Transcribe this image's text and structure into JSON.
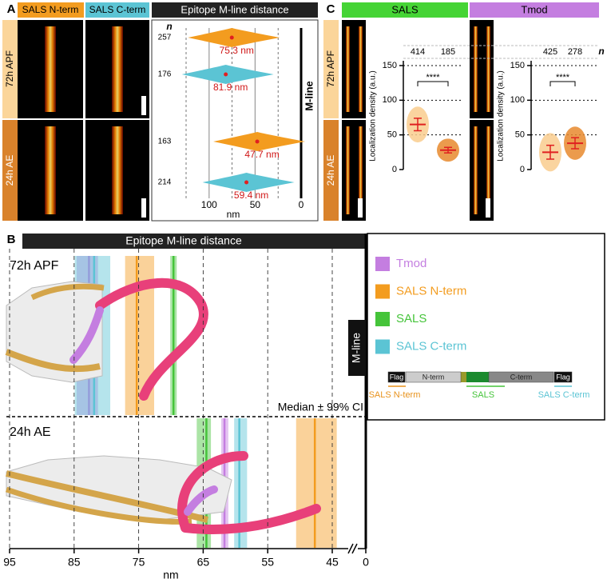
{
  "panel_labels": [
    "A",
    "B",
    "C"
  ],
  "construct": {
    "domains": [
      "Flag",
      "N-term",
      "C-term",
      "Flag"
    ],
    "tags": [
      "SALS N-term",
      "SALS",
      "SALS C-term"
    ]
  },
  "chart_data": [
    {
      "type": "violin",
      "title": "Epitope M-line distance",
      "image_labels": [
        "SALS N-term",
        "SALS C-term"
      ],
      "categories": [
        "72h APF",
        "24h AE"
      ],
      "n_label": "n",
      "x_label": "nm",
      "reference_label": "M-line",
      "xlim": [
        125,
        0
      ],
      "xticks": [
        100,
        50,
        0
      ],
      "grid": true,
      "minor_grid": [
        125,
        75,
        25
      ],
      "series": [
        {
          "name": "SALS N-term",
          "color": "#f39c1f",
          "values": [
            75.3,
            47.7
          ],
          "value_labels": [
            "75.3 nm",
            "47.7 nm"
          ],
          "n": [
            257,
            163
          ]
        },
        {
          "name": "SALS C-term",
          "color": "#5bc4d4",
          "values": [
            81.9,
            59.4
          ],
          "value_labels": [
            "81.9 nm",
            "59.4 nm"
          ],
          "n": [
            176,
            214
          ]
        }
      ]
    },
    {
      "type": "interval",
      "title": "Epitope M-line distance",
      "categories": [
        "72h APF",
        "24h AE"
      ],
      "annotation": "Median ± 99% CI",
      "x_label": "nm",
      "reference_label": "M-line",
      "xlim": [
        95,
        0
      ],
      "xticks": [
        95,
        85,
        75,
        65,
        55,
        45,
        0
      ],
      "axis_break": true,
      "grid": true,
      "series": [
        {
          "name": "Tmod",
          "color": "#c47ee0",
          "values": [
            82.7,
            61.7
          ],
          "ci_lower": [
            81.3,
            61.1
          ],
          "ci_upper": [
            84.6,
            62.2
          ]
        },
        {
          "name": "SALS N-term",
          "color": "#f39c1f",
          "values": [
            75.3,
            47.7
          ],
          "ci_lower": [
            72.6,
            44.3
          ],
          "ci_upper": [
            77.1,
            50.6
          ]
        },
        {
          "name": "SALS",
          "color": "#45c43a",
          "values": [
            69.6,
            64.5
          ],
          "ci_lower": [
            69.1,
            63.8
          ],
          "ci_upper": [
            70.1,
            66.0
          ]
        },
        {
          "name": "SALS C-term",
          "color": "#5bc4d4",
          "values": [
            81.9,
            59.4
          ],
          "ci_lower": [
            79.4,
            58.2
          ],
          "ci_upper": [
            84.9,
            60.2
          ]
        }
      ]
    },
    {
      "type": "strip",
      "title": "SALS",
      "y_label": "Localization density (a.u.)",
      "categories": [
        "72h APF",
        "24h AE"
      ],
      "n_label": "n",
      "n": [
        414,
        185
      ],
      "values": [
        65,
        28
      ],
      "error": [
        9,
        4
      ],
      "colors": [
        "#f9cd8e",
        "#e88a2e"
      ],
      "significance": "****",
      "ylim": [
        0,
        150
      ],
      "yticks": [
        0,
        50,
        100,
        150
      ],
      "grid": true
    },
    {
      "type": "strip",
      "title": "Tmod",
      "y_label": "Localization density (a.u.)",
      "n": [
        425,
        278
      ],
      "values": [
        25,
        38
      ],
      "error": [
        10,
        8
      ],
      "colors": [
        "#f9cd8e",
        "#e88a2e"
      ],
      "significance": "****",
      "ylim": [
        0,
        150
      ],
      "yticks": [
        0,
        50,
        100,
        150
      ],
      "grid": true
    }
  ]
}
